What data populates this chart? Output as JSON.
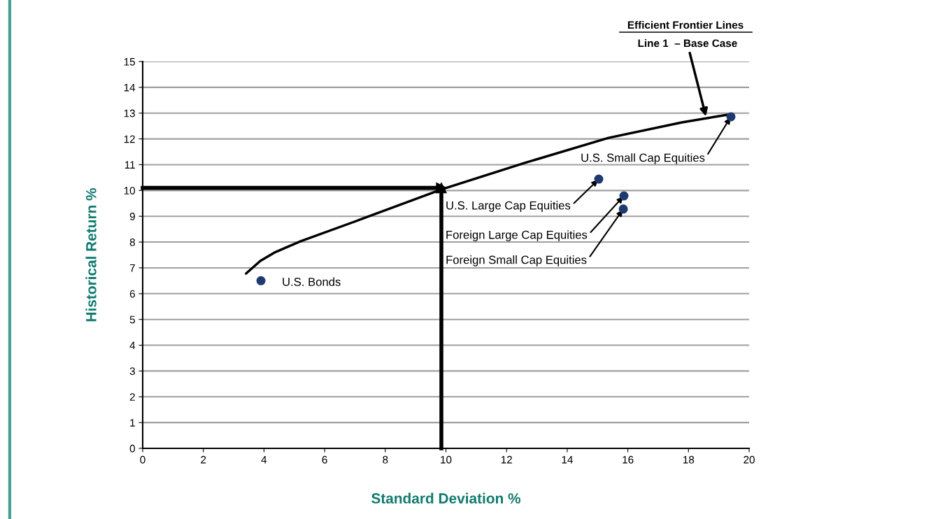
{
  "chart_data": {
    "type": "scatter",
    "xlabel": "Standard Deviation %",
    "ylabel": "Historical Return %",
    "xlim": [
      0,
      20
    ],
    "xticks": [
      0,
      2,
      4,
      6,
      8,
      10,
      12,
      14,
      16,
      18,
      20
    ],
    "ylim": [
      0,
      15
    ],
    "yticks": [
      0,
      1,
      2,
      3,
      4,
      5,
      6,
      7,
      8,
      9,
      10,
      11,
      12,
      13,
      14,
      15
    ],
    "grid": "y",
    "series": [
      {
        "type": "line",
        "name": "Line 1  – Base Case",
        "color": "#000000",
        "marker": "none",
        "line_style": "solid",
        "x": [
          3.41,
          3.88,
          4.34,
          5.21,
          7.17,
          9.85,
          12.6,
          15.36,
          17.78,
          19.4
        ],
        "values": [
          6.78,
          7.27,
          7.59,
          8.03,
          8.87,
          10.04,
          11.07,
          12.04,
          12.64,
          12.96
        ]
      },
      {
        "color": "#1f3a6e",
        "marker": "circle",
        "x": [
          3.9,
          15.04,
          15.87,
          15.85,
          19.4
        ],
        "values": [
          6.5,
          10.44,
          9.79,
          9.28,
          12.86
        ]
      }
    ],
    "ref_lines": [
      {
        "axis": "y",
        "value": 10.1,
        "color": "#000000",
        "line_style": "solid"
      },
      {
        "axis": "x",
        "value": 9.85,
        "color": "#000000",
        "line_style": "solid"
      }
    ],
    "annotations": [
      {
        "text": "U.S. Bonds",
        "x": 3.9,
        "y": 6.5
      },
      {
        "text": "U.S. Large Cap Equities",
        "x": 15.04,
        "y": 10.44
      },
      {
        "text": "Foreign Large Cap Equities",
        "x": 15.87,
        "y": 9.79
      },
      {
        "text": "Foreign Small Cap Equities",
        "x": 15.85,
        "y": 9.28
      },
      {
        "text": "U.S. Small Cap Equities",
        "x": 19.4,
        "y": 12.86
      },
      "Efficient Frontier Lines"
    ]
  }
}
